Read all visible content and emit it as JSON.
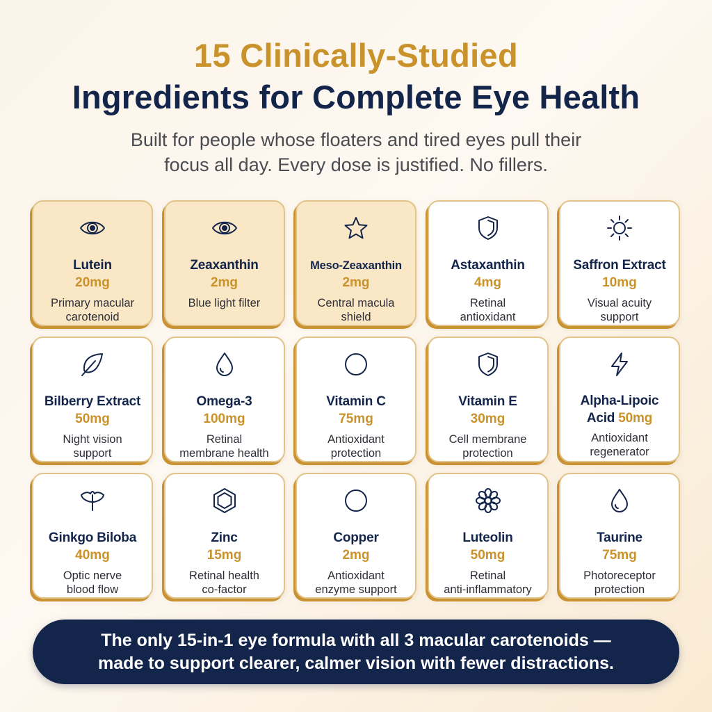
{
  "header": {
    "title_line1": "15 Clinically-Studied",
    "title_line2": "Ingredients for Complete Eye Health",
    "subtitle_line1": "Built for people whose floaters and tired eyes pull their",
    "subtitle_line2": "focus all day. Every dose is justified. No fillers."
  },
  "ingredients": [
    {
      "name": "Lutein",
      "dose": "20mg",
      "desc1": "Primary macular",
      "desc2": "carotenoid",
      "icon": "eye-icon",
      "highlight": true
    },
    {
      "name": "Zeaxanthin",
      "dose": "2mg",
      "desc1": "Blue light filter",
      "desc2": "",
      "icon": "eye-icon",
      "highlight": true
    },
    {
      "name": "Meso-Zeaxanthin",
      "dose": "2mg",
      "desc1": "Central macula",
      "desc2": "shield",
      "icon": "star-icon",
      "highlight": true
    },
    {
      "name": "Astaxanthin",
      "dose": "4mg",
      "desc1": "Retinal",
      "desc2": "antioxidant",
      "icon": "shield-icon",
      "highlight": false
    },
    {
      "name": "Saffron Extract",
      "dose": "10mg",
      "desc1": "Visual acuity",
      "desc2": "support",
      "icon": "sun-icon",
      "highlight": false
    },
    {
      "name": "Bilberry Extract",
      "dose": "50mg",
      "desc1": "Night vision",
      "desc2": "support",
      "icon": "leaf-icon",
      "highlight": false
    },
    {
      "name": "Omega-3",
      "dose": "100mg",
      "desc1": "Retinal",
      "desc2": "membrane health",
      "icon": "droplet-icon",
      "highlight": false
    },
    {
      "name": "Vitamin C",
      "dose": "75mg",
      "desc1": "Antioxidant",
      "desc2": "protection",
      "icon": "circle-icon",
      "highlight": false
    },
    {
      "name": "Vitamin E",
      "dose": "30mg",
      "desc1": "Cell membrane",
      "desc2": "protection",
      "icon": "shield-icon",
      "highlight": false
    },
    {
      "name": "Alpha-Lipoic",
      "dose": "Acid 50mg",
      "desc1": "Antioxidant",
      "desc2": "regenerator",
      "icon": "lightning-icon",
      "highlight": false
    },
    {
      "name": "Ginkgo Biloba",
      "dose": "40mg",
      "desc1": "Optic nerve",
      "desc2": "blood flow",
      "icon": "ginkgo-leaf-icon",
      "highlight": false
    },
    {
      "name": "Zinc",
      "dose": "15mg",
      "desc1": "Retinal health",
      "desc2": "co-factor",
      "icon": "hexagon-icon",
      "highlight": false
    },
    {
      "name": "Copper",
      "dose": "2mg",
      "desc1": "Antioxidant",
      "desc2": "enzyme support",
      "icon": "circle-icon",
      "highlight": false
    },
    {
      "name": "Luteolin",
      "dose": "50mg",
      "desc1": "Retinal",
      "desc2": "anti-inflammatory",
      "icon": "flower-icon",
      "highlight": false
    },
    {
      "name": "Taurine",
      "dose": "75mg",
      "desc1": "Photoreceptor",
      "desc2": "protection",
      "icon": "droplet-icon",
      "highlight": false
    }
  ],
  "banner": {
    "line1": "The only 15-in-1 eye formula with all 3 macular carotenoids —",
    "line2": "made to support clearer, calmer vision with fewer distractions."
  },
  "colors": {
    "navy": "#13254b",
    "gold": "#c9922b",
    "highlight_card": "#f9e7c6"
  }
}
